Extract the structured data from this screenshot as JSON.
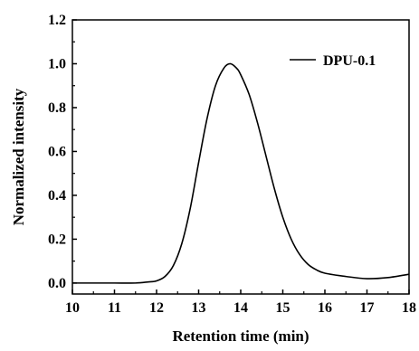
{
  "chart_data": {
    "type": "line",
    "title": "",
    "xlabel": "Retention time (min)",
    "ylabel": "Normalized intensity",
    "xlim": [
      10,
      18
    ],
    "ylim": [
      -0.05,
      1.2
    ],
    "xticks": [
      "10",
      "11",
      "12",
      "13",
      "14",
      "15",
      "16",
      "17",
      "18"
    ],
    "yticks": [
      "0.0",
      "0.2",
      "0.4",
      "0.6",
      "0.8",
      "1.0",
      "1.2"
    ],
    "grid": false,
    "legend_position": "top-right",
    "series": [
      {
        "name": "DPU-0.1",
        "color": "#000000",
        "x": [
          10.0,
          10.5,
          11.0,
          11.5,
          11.8,
          12.0,
          12.2,
          12.4,
          12.6,
          12.8,
          13.0,
          13.2,
          13.4,
          13.6,
          13.75,
          13.9,
          14.0,
          14.2,
          14.4,
          14.6,
          14.8,
          15.0,
          15.2,
          15.4,
          15.6,
          15.8,
          16.0,
          16.5,
          17.0,
          17.5,
          18.0
        ],
        "y": [
          0.0,
          0.0,
          0.0,
          0.0,
          0.005,
          0.01,
          0.03,
          0.08,
          0.18,
          0.34,
          0.55,
          0.75,
          0.9,
          0.98,
          1.0,
          0.98,
          0.95,
          0.86,
          0.73,
          0.58,
          0.43,
          0.3,
          0.2,
          0.13,
          0.085,
          0.06,
          0.045,
          0.03,
          0.02,
          0.025,
          0.04
        ]
      }
    ]
  }
}
